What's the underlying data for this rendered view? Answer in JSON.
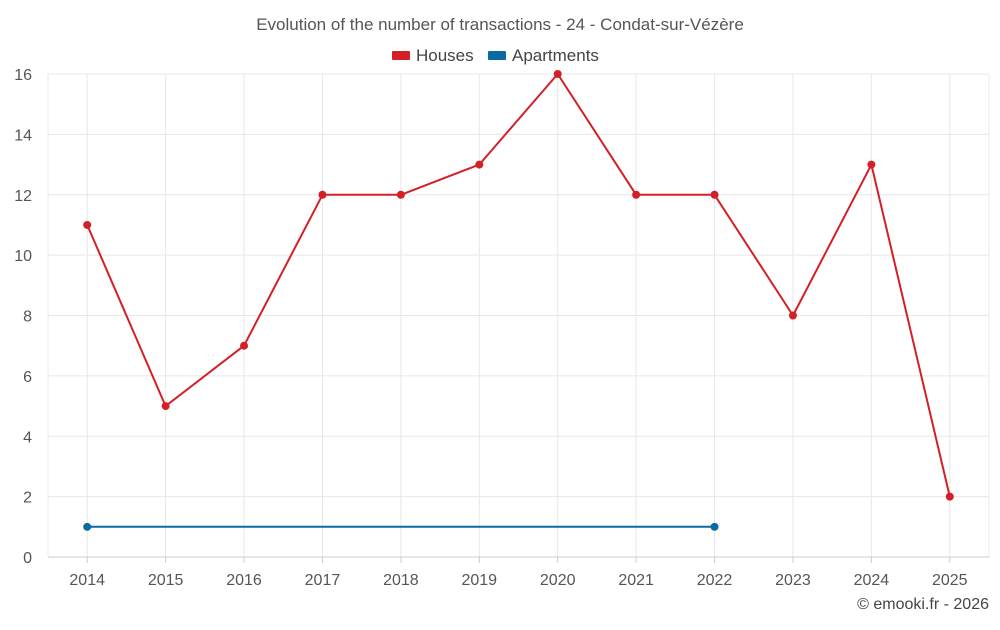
{
  "chart_data": {
    "type": "line",
    "title": "Evolution of the number of transactions - 24 - Condat-sur-Vézère",
    "categories": [
      "2014",
      "2015",
      "2016",
      "2017",
      "2018",
      "2019",
      "2020",
      "2021",
      "2022",
      "2023",
      "2024",
      "2025"
    ],
    "series": [
      {
        "name": "Houses",
        "color": "#d32027",
        "values": [
          11,
          5,
          7,
          12,
          12,
          13,
          16,
          12,
          12,
          8,
          13,
          2
        ]
      },
      {
        "name": "Apartments",
        "color": "#0b6aa2",
        "values": [
          1,
          null,
          null,
          null,
          null,
          null,
          null,
          null,
          1,
          null,
          null,
          null
        ]
      }
    ],
    "y_ticks": [
      "0",
      "2",
      "4",
      "6",
      "8",
      "10",
      "12",
      "14",
      "16"
    ],
    "ylim": [
      0,
      16
    ],
    "xlabel": "",
    "ylabel": "",
    "grid": true,
    "legend_position": "top-center"
  },
  "credit": "© emooki.fr - 2026"
}
